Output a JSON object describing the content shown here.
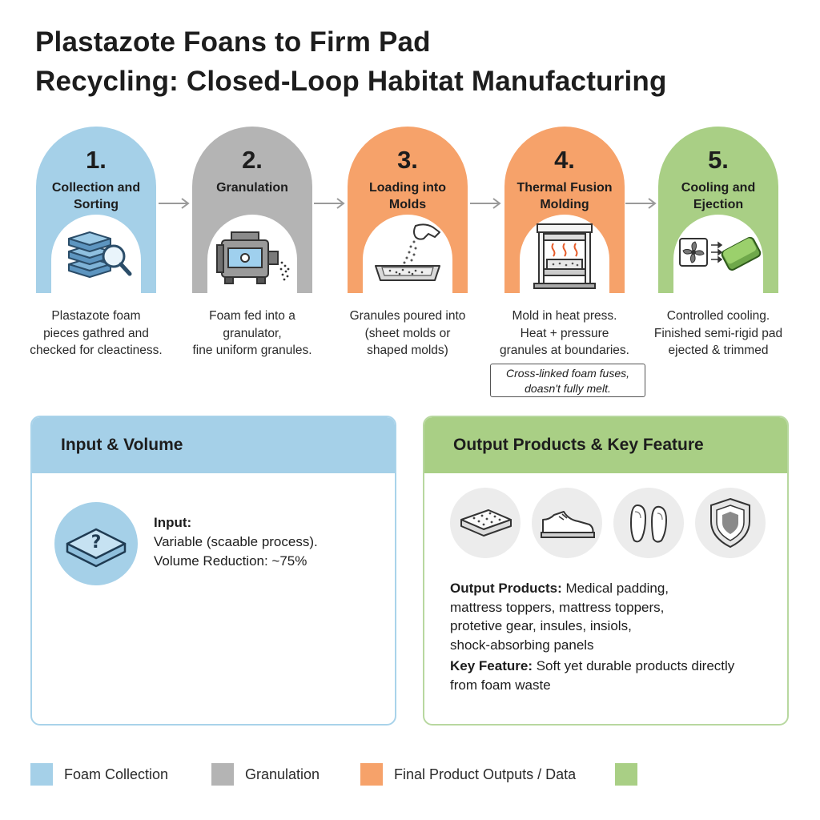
{
  "title": {
    "line1": "Plastazote Foans to Firm Pad",
    "line2": "Recycling: Closed-Loop Habitat Manufacturing"
  },
  "colors": {
    "blue": "#a5d0e8",
    "gray": "#b4b4b4",
    "orange": "#f6a26a",
    "green": "#a9cf85"
  },
  "steps": [
    {
      "number": "1.",
      "name_line1": "Collection and",
      "name_line2": "Sorting",
      "icon": "stacked-foam-magnifier-icon",
      "desc": [
        "Plastazote foam",
        "pieces gathred and",
        "checked for cleactiness."
      ]
    },
    {
      "number": "2.",
      "name_line1": "Granulation",
      "name_line2": "",
      "icon": "granulator-machine-icon",
      "desc": [
        "Foam fed into a",
        "granulator,",
        "fine uniform granules."
      ]
    },
    {
      "number": "3.",
      "name_line1": "Loading into",
      "name_line2": "Molds",
      "icon": "hand-pouring-tray-icon",
      "desc": [
        "Granules poured into",
        "(sheet molds or",
        "shaped molds)"
      ]
    },
    {
      "number": "4.",
      "name_line1": "Thermal Fusion",
      "name_line2": "Molding",
      "icon": "heat-press-icon",
      "desc": [
        "Mold in heat press.",
        "Heat + pressure",
        "granules at boundaries."
      ]
    },
    {
      "number": "5.",
      "name_line1": "Cooling and",
      "name_line2": "Ejection",
      "icon": "fan-cooling-pad-icon",
      "desc": [
        "Controlled cooling.",
        "Finished semi-rigid pad",
        "ejected & trimmed"
      ]
    }
  ],
  "note": {
    "line1": "Cross-linked foam fuses,",
    "line2": "doasn't fully melt."
  },
  "input_panel": {
    "heading": "Input & Volume",
    "icon": "foam-block-question-icon",
    "input_label": "Input:",
    "input_value": "Variable (scaable process).",
    "volume_text": "Volume Reduction: ~75%"
  },
  "output_panel": {
    "heading": "Output Products & Key Feature",
    "icons": [
      "mattress-icon",
      "shoe-icon",
      "insoles-icon",
      "protective-shield-icon"
    ],
    "products_label": "Output Products:",
    "products_line1": " Medical padding,",
    "products_line2": "mattress toppers,  mattress toppers,",
    "products_line3": "protetive gear, insules, insiols,",
    "products_line4": "shock-absorbing panels",
    "feature_label": "Key Feature:",
    "feature_line1": " Soft yet durable products directly",
    "feature_line2": "from foam waste"
  },
  "legend": [
    {
      "label": "Foam Collection",
      "color": "#a5d0e8"
    },
    {
      "label": "Granulation",
      "color": "#b4b4b4"
    },
    {
      "label": "Final Product Outputs / Data",
      "color": "#f6a26a"
    },
    {
      "label": "",
      "color": "#a9cf85"
    }
  ]
}
